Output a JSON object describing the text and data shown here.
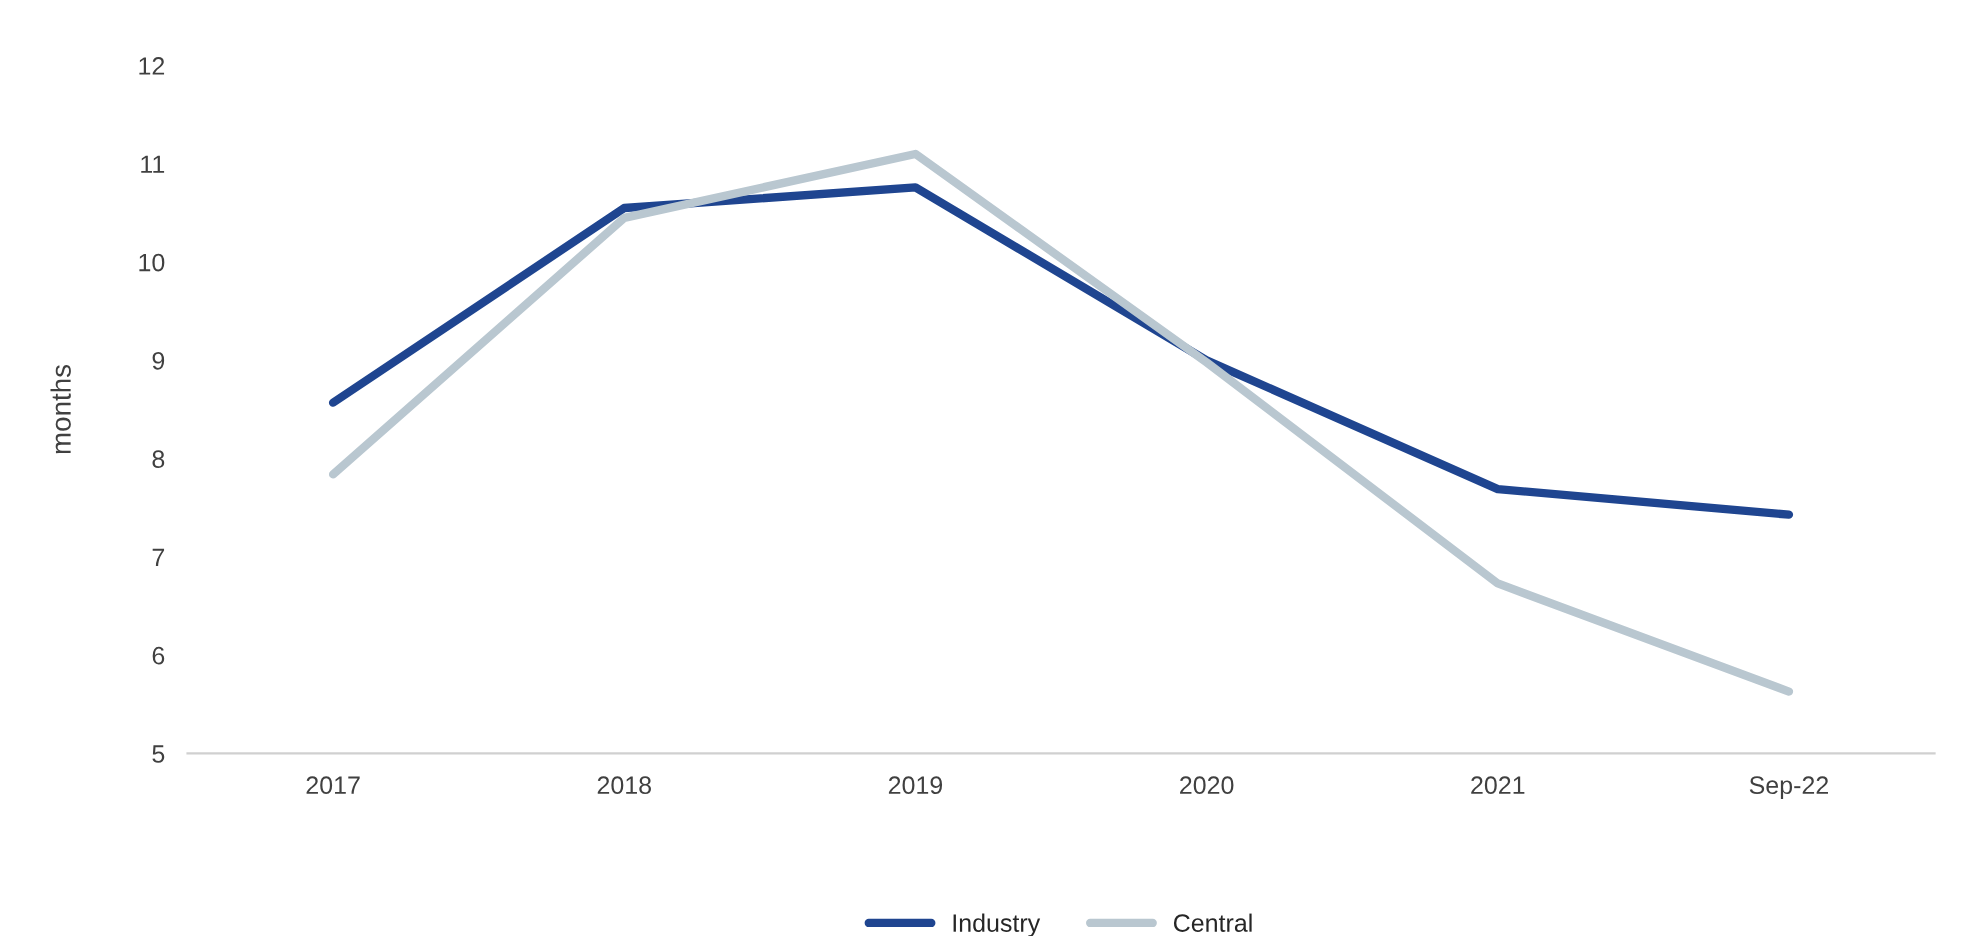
{
  "chart_data": {
    "type": "line",
    "ylabel": "months",
    "categories": [
      "2017",
      "2018",
      "2019",
      "2020",
      "2021",
      "Sep-22"
    ],
    "series": [
      {
        "name": "Industry",
        "color": "#1f4590",
        "values": [
          8.57,
          10.55,
          10.76,
          9.0,
          7.69,
          7.43
        ]
      },
      {
        "name": "Central",
        "color": "#b9c7d0",
        "values": [
          7.84,
          10.45,
          11.1,
          8.98,
          6.73,
          5.63
        ]
      }
    ],
    "ylim": [
      5,
      12
    ],
    "yticks": [
      5,
      6,
      7,
      8,
      9,
      10,
      11,
      12
    ],
    "grid": false,
    "legend": "bottom",
    "line_style": "solid",
    "marker": "none"
  }
}
